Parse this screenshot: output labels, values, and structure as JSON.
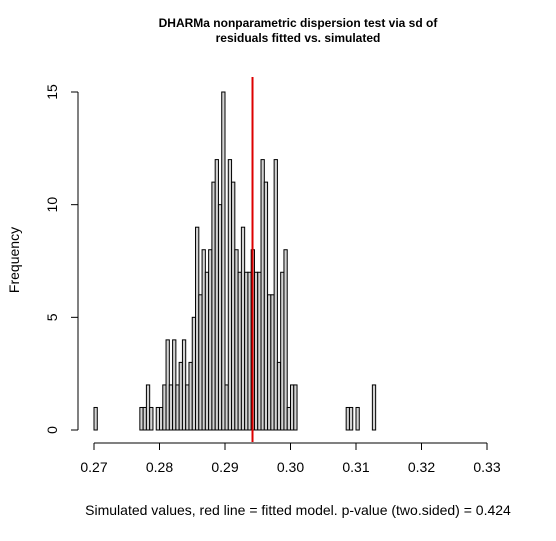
{
  "chart_data": {
    "type": "bar",
    "title_lines": [
      "DHARMa nonparametric dispersion test via sd of",
      "residuals fitted vs. simulated"
    ],
    "xlabel": "Simulated values, red line = fitted model. p-value (two.sided) = 0.424",
    "ylabel": "Frequency",
    "xlim": [
      0.27,
      0.3325
    ],
    "ylim": [
      0,
      15
    ],
    "x_ticks": [
      "0.27",
      "0.28",
      "0.29",
      "0.30",
      "0.31",
      "0.32",
      "0.33"
    ],
    "y_ticks": [
      "0",
      "5",
      "10",
      "15"
    ],
    "bin_width": 0.0005,
    "bin_start": 0.27,
    "frequencies": [
      1,
      0,
      0,
      0,
      0,
      0,
      0,
      0,
      0,
      0,
      0,
      0,
      0,
      0,
      1,
      1,
      2,
      1,
      0,
      1,
      1,
      2,
      4,
      2,
      4,
      2,
      3,
      4,
      2,
      3,
      5,
      9,
      6,
      8,
      7,
      8,
      11,
      12,
      10,
      15,
      2,
      12,
      11,
      8,
      7,
      9,
      7,
      7,
      8,
      7,
      7,
      12,
      11,
      6,
      6,
      12,
      3,
      7,
      8,
      1,
      2,
      2,
      0,
      0,
      0,
      0,
      0,
      0,
      0,
      0,
      0,
      0,
      0,
      0,
      0,
      0,
      0,
      1,
      1,
      0,
      1,
      0,
      0,
      0,
      0,
      2
    ],
    "fitted_value": 0.2942,
    "colors": {
      "bar_fill": "#d3d3d3",
      "bar_stroke": "#000000",
      "fitted_line": "#dd0000"
    }
  }
}
